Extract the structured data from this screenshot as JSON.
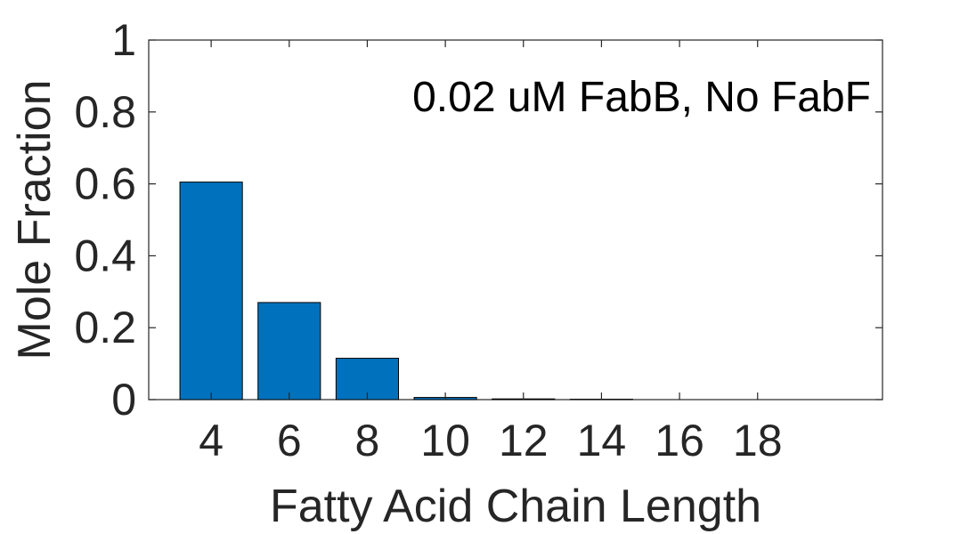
{
  "chart_data": {
    "type": "bar",
    "title": "",
    "annotation": "0.02 uM FabB, No FabF",
    "xlabel": "Fatty Acid Chain Length",
    "ylabel": "Mole Fraction",
    "categories": [
      4,
      6,
      8,
      10,
      12,
      14,
      16,
      18
    ],
    "series": [
      {
        "values": [
          0.605,
          0.27,
          0.115,
          0.006,
          0.002,
          0.001,
          0.0,
          0.0
        ]
      }
    ],
    "xlim": [
      2.4,
      21.2
    ],
    "ylim": [
      0,
      1
    ],
    "yticks": [
      "0",
      "0.2",
      "0.4",
      "0.6",
      "0.8",
      "1"
    ],
    "xticks": [
      "4",
      "6",
      "8",
      "10",
      "12",
      "14",
      "16",
      "18"
    ],
    "grid": false,
    "bar_color": "#0072BD"
  }
}
